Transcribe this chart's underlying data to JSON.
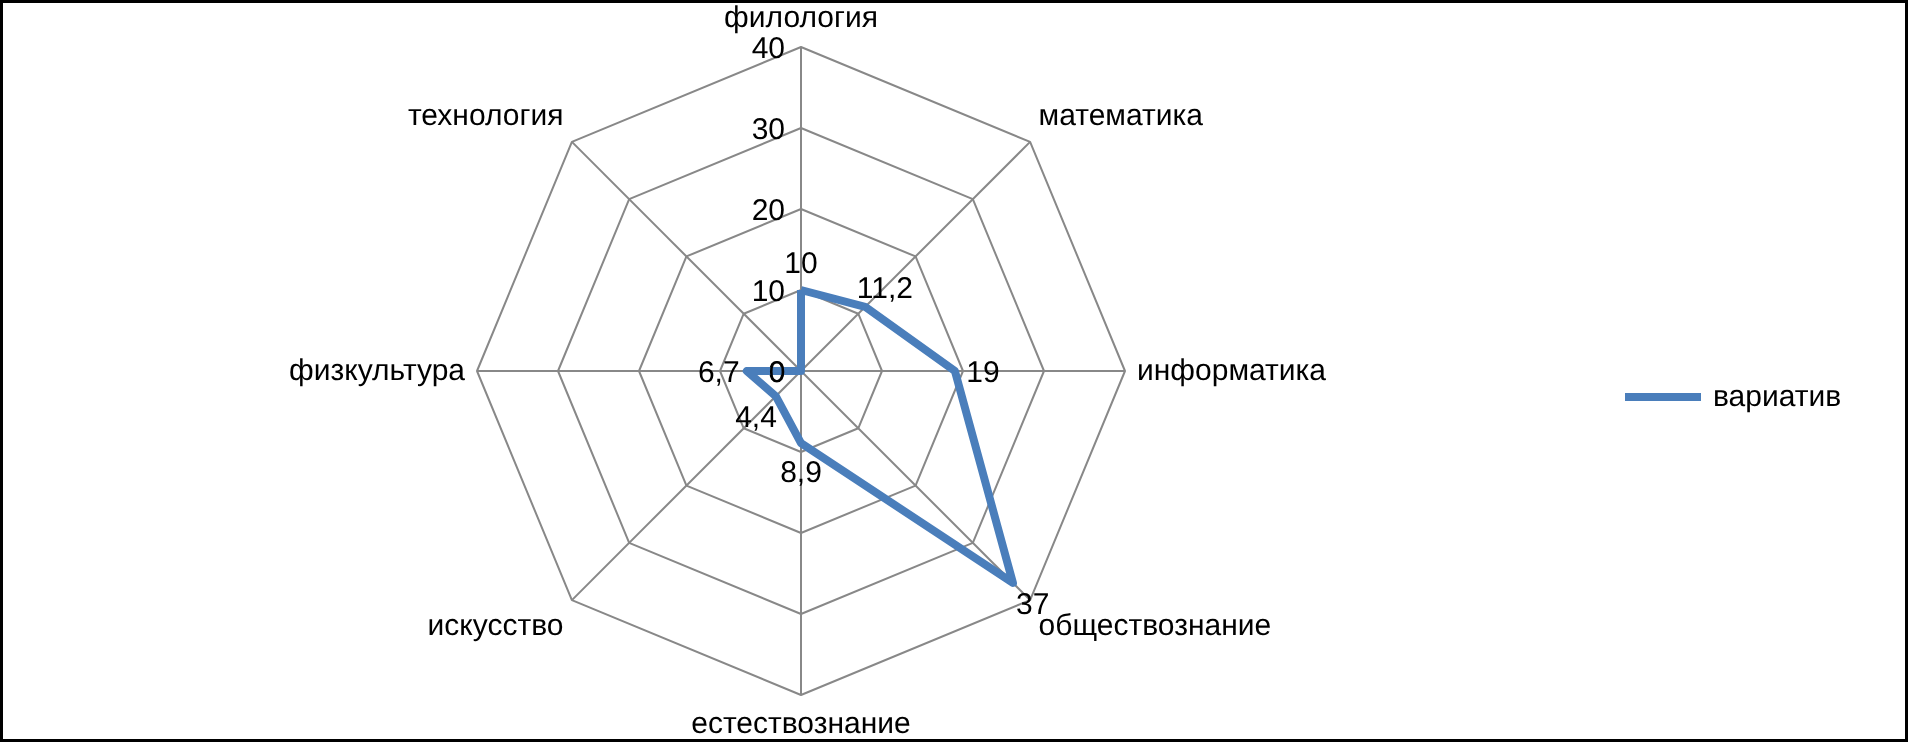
{
  "chart_data": {
    "type": "radar",
    "categories": [
      "филология",
      "математика",
      "информатика",
      "обществознание",
      "естествознание",
      "искусство",
      "физкультура",
      "технология"
    ],
    "series": [
      {
        "name": "вариатив",
        "color": "#4a7ebb",
        "values": [
          10,
          11.2,
          19,
          37,
          8.9,
          4.4,
          6.7,
          0
        ],
        "value_labels": [
          "10",
          "11,2",
          "19",
          "37",
          "8,9",
          "4,4",
          "6,7",
          "0"
        ]
      }
    ],
    "ylim": [
      0,
      40
    ],
    "yticks": [
      0,
      10,
      20,
      30,
      40
    ],
    "legend": "right",
    "grid": true
  }
}
